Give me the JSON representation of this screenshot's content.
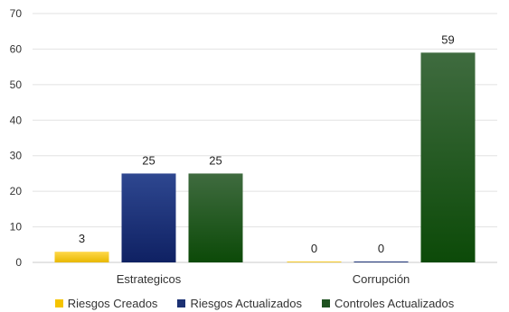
{
  "chart_data": {
    "type": "bar",
    "categories": [
      "Estrategicos",
      "Corrupción"
    ],
    "series": [
      {
        "name": "Riesgos Creados",
        "values": [
          3,
          0
        ],
        "color": "#f5c400"
      },
      {
        "name": "Riesgos Actualizados",
        "values": [
          25,
          0
        ],
        "color": "#1c3173"
      },
      {
        "name": "Controles Actualizados",
        "values": [
          25,
          59
        ],
        "color": "#1e5220"
      }
    ],
    "ylim": [
      0,
      70
    ],
    "yticks": [
      "0",
      "10",
      "20",
      "30",
      "40",
      "50",
      "60",
      "70"
    ],
    "grid": true,
    "legend_position": "bottom"
  }
}
